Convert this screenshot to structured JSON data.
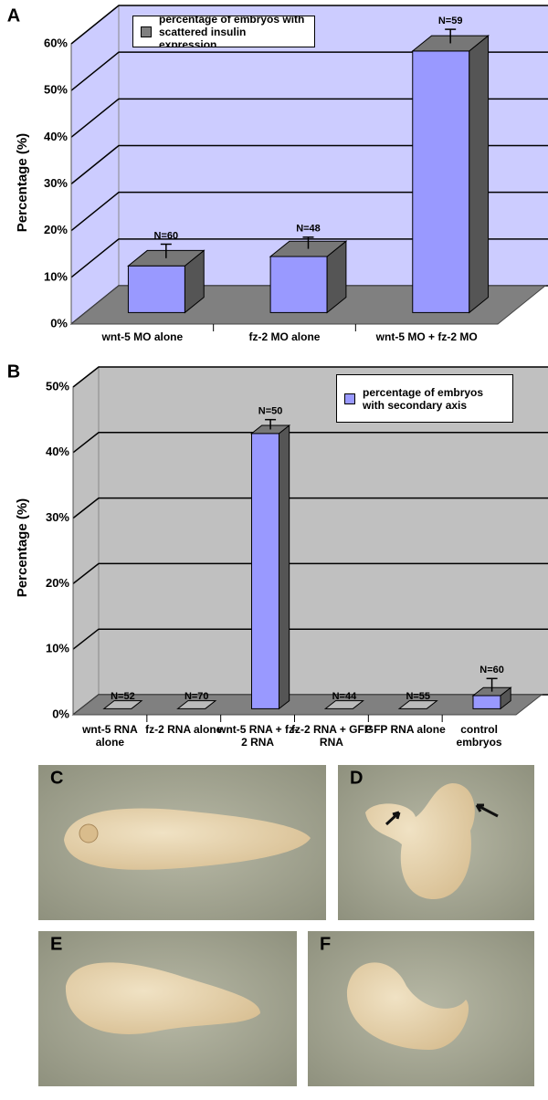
{
  "chart_data": [
    {
      "type": "bar3d",
      "panel_label": "A",
      "ylabel": "Percentage (%)",
      "categories": [
        "wnt-5 MO alone",
        "fz-2 MO alone",
        "wnt-5 MO + fz-2 MO"
      ],
      "series": [
        {
          "name": "percentage of embryos with scattered insulin expression",
          "color": "#9999ff",
          "values": [
            10,
            12,
            56
          ],
          "errors": [
            3,
            2.5,
            3
          ]
        }
      ],
      "annotations": [
        "N=60",
        "N=48",
        "N=59"
      ],
      "ylim": [
        0,
        60
      ],
      "yticks": [
        {
          "value": 0,
          "label": "0%"
        },
        {
          "value": 10,
          "label": "10%"
        },
        {
          "value": 20,
          "label": "20%"
        },
        {
          "value": 30,
          "label": "30%"
        },
        {
          "value": 40,
          "label": "40%"
        },
        {
          "value": 50,
          "label": "50%"
        },
        {
          "value": 60,
          "label": "60%"
        }
      ],
      "grid": true,
      "legend": "top-left",
      "background": "#ccccff"
    },
    {
      "type": "bar3d",
      "panel_label": "B",
      "ylabel": "Percentage (%)",
      "categories": [
        "wnt-5 RNA alone",
        "fz-2 RNA alone",
        "wnt-5 RNA + fz-2 RNA",
        "fz-2 RNA + GFP RNA",
        "GFP RNA alone",
        "control embryos"
      ],
      "series": [
        {
          "name": "percentage of embryos with secondary axis",
          "color": "#9999ff",
          "values": [
            0,
            0,
            42,
            0,
            0,
            2
          ],
          "errors": [
            0,
            0,
            1.5,
            0,
            0,
            2
          ]
        }
      ],
      "annotations": [
        "N=52",
        "N=70",
        "N=50",
        "N=44",
        "N=55",
        "N=60"
      ],
      "ylim": [
        0,
        50
      ],
      "yticks": [
        {
          "value": 0,
          "label": "0%"
        },
        {
          "value": 10,
          "label": "10%"
        },
        {
          "value": 20,
          "label": "20%"
        },
        {
          "value": 30,
          "label": "30%"
        },
        {
          "value": 40,
          "label": "40%"
        },
        {
          "value": 50,
          "label": "50%"
        }
      ],
      "grid": true,
      "legend": "top-right",
      "background": "#c0c0c0"
    }
  ],
  "panels": [
    "C",
    "D",
    "E",
    "F"
  ]
}
